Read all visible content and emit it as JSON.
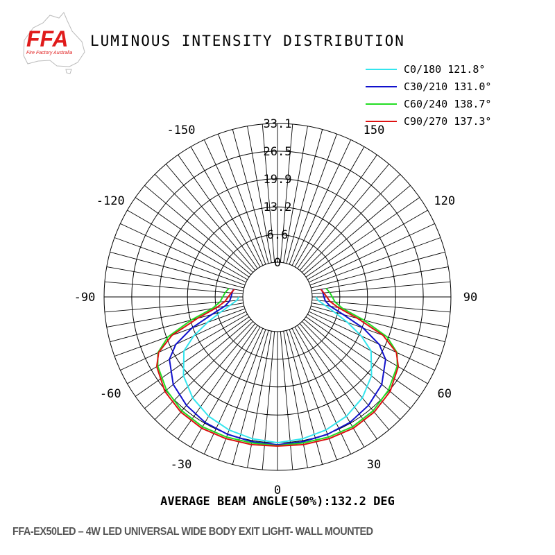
{
  "logo": {
    "text": "FFA",
    "subtitle": "Fire Factory Australia",
    "color": "#e01b1b"
  },
  "chart_data": {
    "type": "polar",
    "title": "LUMINOUS INTENSITY DISTRIBUTION",
    "footer": "AVERAGE BEAM ANGLE(50%):132.2 DEG",
    "radial_max": 33.1,
    "radial_ticks": [
      "0",
      "6.6",
      "13.2",
      "19.9",
      "26.5",
      "33.1"
    ],
    "radial_tick_values": [
      0,
      6.6,
      13.2,
      19.9,
      26.5,
      33.1
    ],
    "angle_labels": [
      {
        "angle": 0,
        "text": "0"
      },
      {
        "angle": 30,
        "text": "30"
      },
      {
        "angle": -30,
        "text": "-30"
      },
      {
        "angle": 60,
        "text": "60"
      },
      {
        "angle": -60,
        "text": "-60"
      },
      {
        "angle": 90,
        "text": "90"
      },
      {
        "angle": -90,
        "text": "-90"
      },
      {
        "angle": 120,
        "text": "120"
      },
      {
        "angle": -120,
        "text": "-120"
      },
      {
        "angle": 150,
        "text": "150"
      },
      {
        "angle": -150,
        "text": "-150"
      }
    ],
    "angle_units": "degrees from downward vertical",
    "legend_position": "top-right",
    "series": [
      {
        "name": "C0/180 121.8°",
        "color": "#33e5ee",
        "angles": [
          0,
          10,
          20,
          30,
          40,
          50,
          60,
          65,
          70,
          75,
          80,
          85,
          90
        ],
        "values": [
          26.5,
          26.1,
          25.5,
          24.6,
          23.2,
          21.0,
          17.5,
          13.8,
          9.5,
          5.8,
          3.2,
          1.5,
          0.9
        ]
      },
      {
        "name": "C30/210 131.0°",
        "color": "#1010cc",
        "angles": [
          0,
          10,
          20,
          30,
          40,
          50,
          60,
          65,
          70,
          75,
          80,
          85,
          90,
          95,
          100
        ],
        "values": [
          27.0,
          26.8,
          26.6,
          26.3,
          25.5,
          24.2,
          21.5,
          18.5,
          13.5,
          8.0,
          4.5,
          3.2,
          2.8,
          2.6,
          2.4
        ]
      },
      {
        "name": "C60/240 138.7°",
        "color": "#22dd22",
        "angles": [
          0,
          10,
          20,
          30,
          40,
          50,
          60,
          65,
          70,
          75,
          80,
          85,
          90,
          95,
          100
        ],
        "values": [
          27.2,
          27.1,
          27.3,
          27.5,
          27.2,
          26.3,
          24.7,
          23.2,
          19.5,
          13.0,
          7.5,
          5.5,
          4.8,
          4.2,
          3.5
        ]
      },
      {
        "name": "C90/270 137.3°",
        "color": "#dd1111",
        "angles": [
          0,
          10,
          20,
          30,
          40,
          50,
          60,
          65,
          70,
          75,
          80,
          85,
          90,
          95,
          100
        ],
        "values": [
          27.3,
          27.5,
          27.7,
          27.9,
          27.6,
          26.8,
          25.0,
          23.0,
          18.5,
          11.5,
          6.5,
          4.3,
          3.5,
          2.8,
          2.2
        ]
      }
    ]
  },
  "caption": "FFA-EX50LED – 4W LED UNIVERSAL WIDE BODY EXIT LIGHT- WALL MOUNTED"
}
